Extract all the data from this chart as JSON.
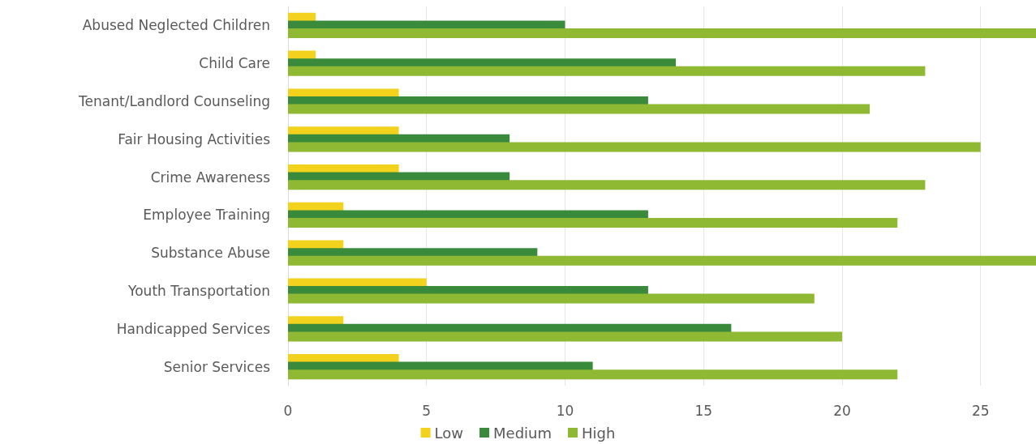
{
  "chart_data": {
    "type": "bar",
    "orientation": "horizontal",
    "categories": [
      "Abused Neglected Children",
      "Child Care",
      "Tenant/Landlord Counseling",
      "Fair Housing Activities",
      "Crime Awareness",
      "Employee Training",
      "Substance Abuse",
      "Youth Transportation",
      "Handicapped Services",
      "Senior Services"
    ],
    "series": [
      {
        "name": "Low",
        "color": "#f2d21c",
        "values": [
          1,
          1,
          4,
          4,
          4,
          2,
          2,
          5,
          2,
          4
        ]
      },
      {
        "name": "Medium",
        "color": "#3a8a3c",
        "values": [
          10,
          14,
          13,
          8,
          8,
          13,
          9,
          13,
          16,
          11
        ]
      },
      {
        "name": "High",
        "color": "#8fb833",
        "values": [
          27,
          23,
          21,
          25,
          23,
          22,
          27,
          19,
          20,
          22
        ]
      }
    ],
    "xlim": [
      0,
      27
    ],
    "xticks": [
      0,
      5,
      10,
      15,
      20,
      25
    ],
    "grid": "x",
    "legend": "bottom"
  }
}
